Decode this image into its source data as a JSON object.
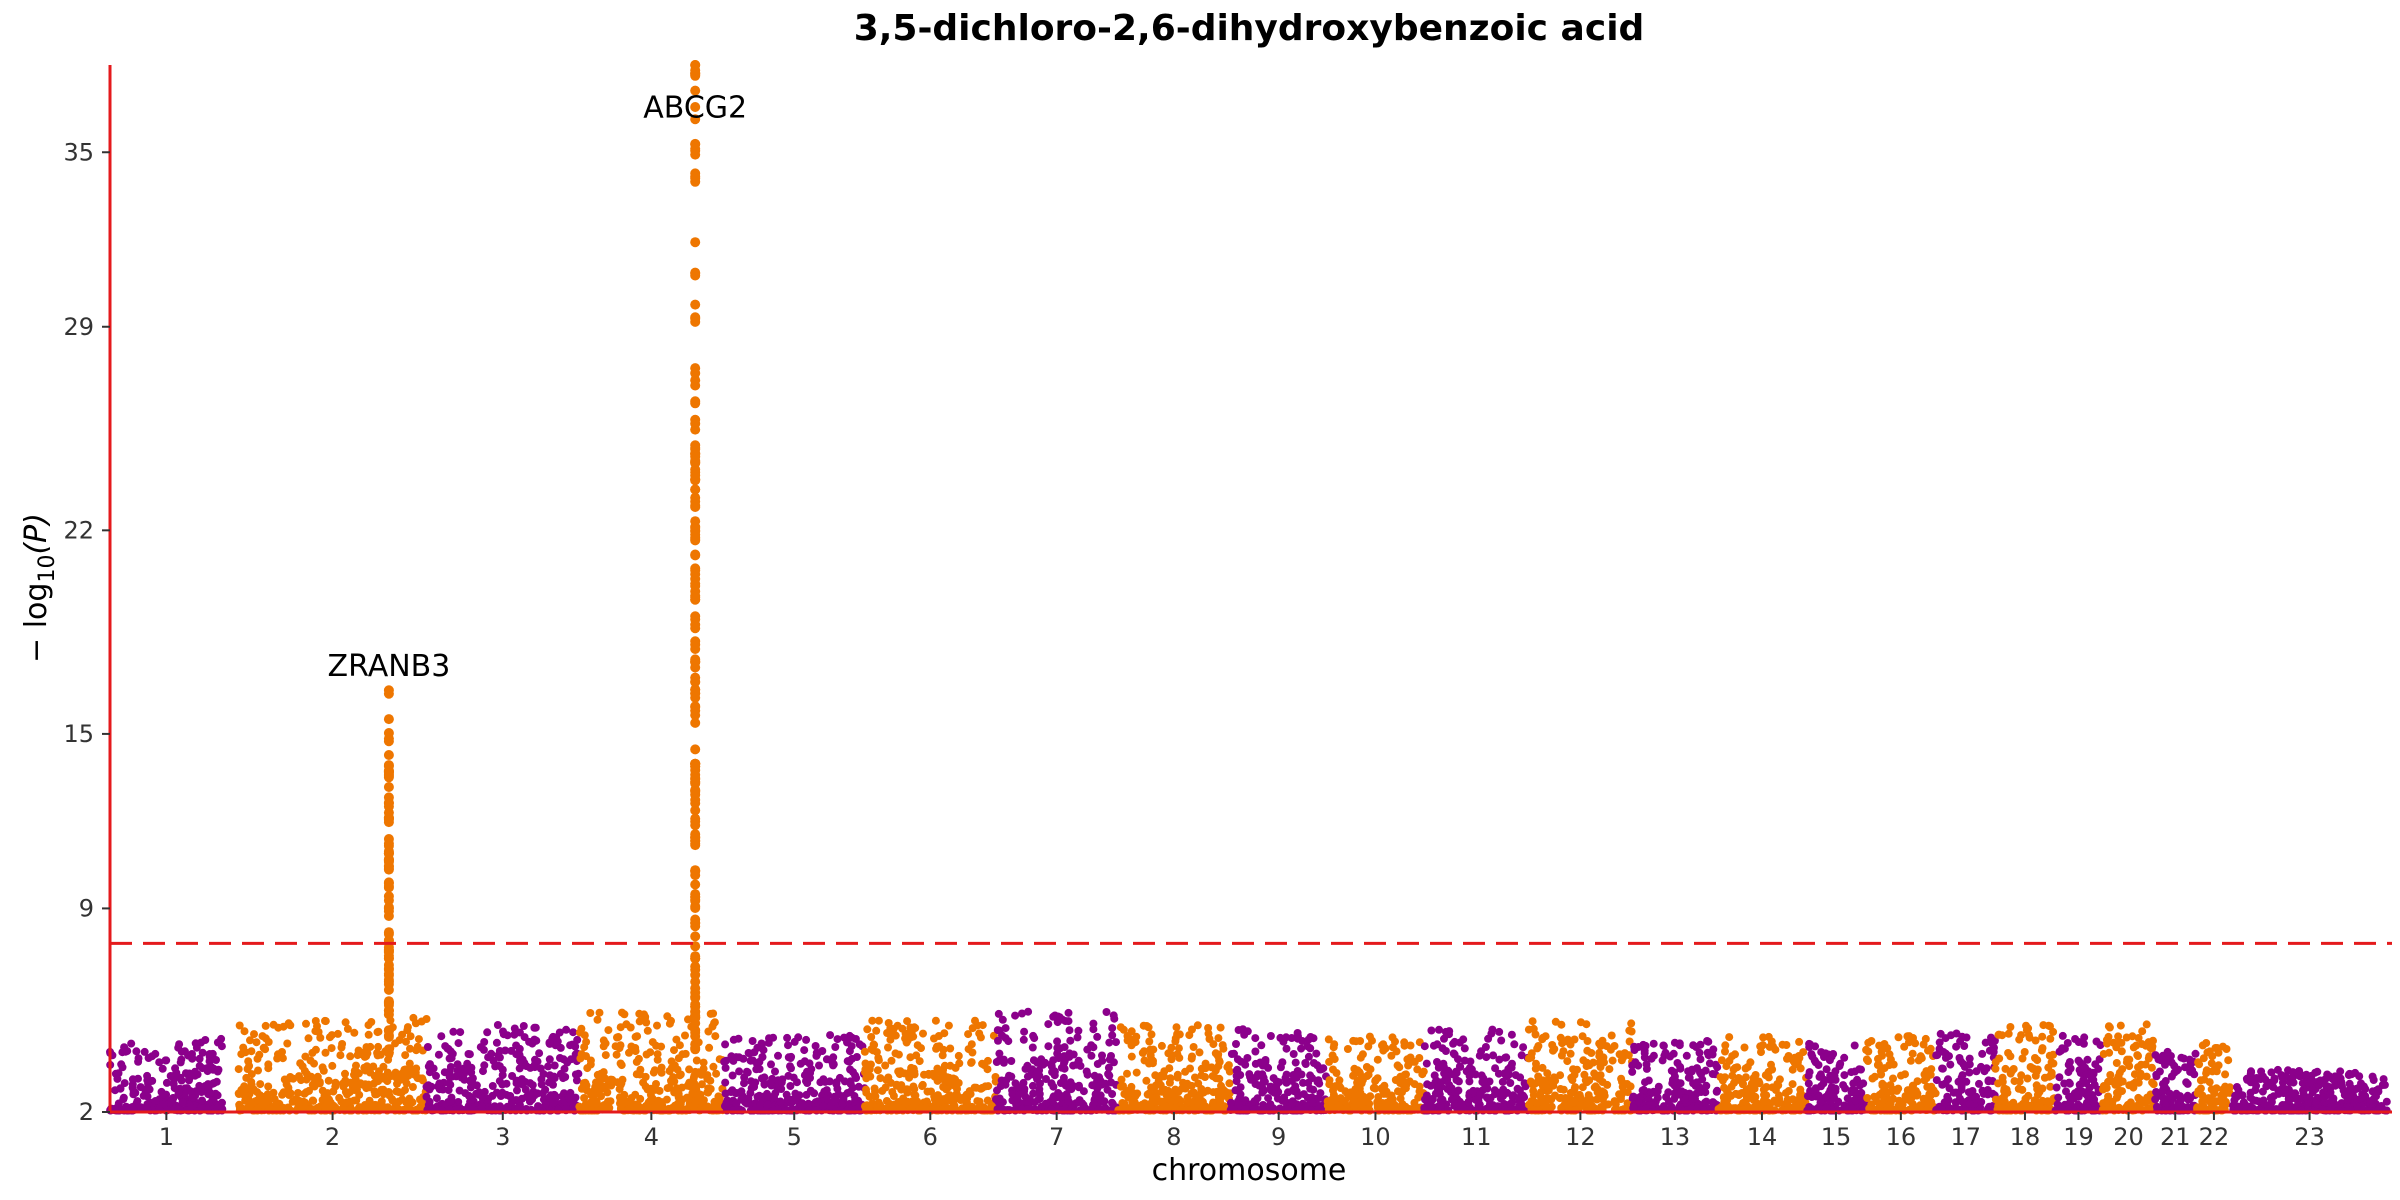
{
  "chart_data": {
    "type": "scatter",
    "title": "3,5-dichloro-2,6-dihydroxybenzoic acid",
    "xlabel": "chromosome",
    "ylabel_prefix": "− log",
    "ylabel_sub": "10",
    "ylabel_suffix": "(P)",
    "ylim": [
      2,
      38
    ],
    "yticks": [
      2,
      9,
      15,
      22,
      29,
      35
    ],
    "significance_threshold": 7.8,
    "colors": {
      "odd": "#8B008B",
      "even": "#EE7600",
      "axis": "#E41A1C",
      "threshold": "#E41A1C"
    },
    "chromosomes": [
      {
        "label": "1",
        "start": 0.0,
        "end": 4.95,
        "base_peak": 4.5
      },
      {
        "label": "2",
        "start": 5.65,
        "end": 13.9,
        "base_peak": 5.2
      },
      {
        "label": "3",
        "start": 13.9,
        "end": 20.6,
        "base_peak": 5.0
      },
      {
        "label": "4",
        "start": 20.6,
        "end": 26.95,
        "base_peak": 5.4
      },
      {
        "label": "5",
        "start": 26.95,
        "end": 33.15,
        "base_peak": 4.6
      },
      {
        "label": "6",
        "start": 33.15,
        "end": 38.9,
        "base_peak": 5.1
      },
      {
        "label": "7",
        "start": 38.9,
        "end": 44.25,
        "base_peak": 5.4
      },
      {
        "label": "8",
        "start": 44.25,
        "end": 49.2,
        "base_peak": 5.0
      },
      {
        "label": "9",
        "start": 49.2,
        "end": 53.45,
        "base_peak": 4.8
      },
      {
        "label": "10",
        "start": 53.45,
        "end": 57.7,
        "base_peak": 4.6
      },
      {
        "label": "11",
        "start": 57.7,
        "end": 62.3,
        "base_peak": 4.8
      },
      {
        "label": "12",
        "start": 62.3,
        "end": 66.85,
        "base_peak": 5.1
      },
      {
        "label": "13",
        "start": 66.85,
        "end": 70.6,
        "base_peak": 4.4
      },
      {
        "label": "14",
        "start": 70.6,
        "end": 74.5,
        "base_peak": 4.6
      },
      {
        "label": "15",
        "start": 74.5,
        "end": 77.1,
        "base_peak": 4.5
      },
      {
        "label": "16",
        "start": 77.1,
        "end": 80.2,
        "base_peak": 4.6
      },
      {
        "label": "17",
        "start": 80.2,
        "end": 82.8,
        "base_peak": 4.7
      },
      {
        "label": "18",
        "start": 82.8,
        "end": 85.4,
        "base_peak": 5.0
      },
      {
        "label": "19",
        "start": 85.4,
        "end": 87.5,
        "base_peak": 4.6
      },
      {
        "label": "20",
        "start": 87.5,
        "end": 89.8,
        "base_peak": 5.0
      },
      {
        "label": "21",
        "start": 89.8,
        "end": 91.6,
        "base_peak": 4.2
      },
      {
        "label": "22",
        "start": 91.6,
        "end": 93.2,
        "base_peak": 4.4
      },
      {
        "label": "23",
        "start": 93.2,
        "end": 100.0,
        "base_peak": 3.4
      }
    ],
    "peaks": [
      {
        "chrom": "2",
        "pos": 12.25,
        "max": 16.5
      },
      {
        "chrom": "4",
        "pos": 25.7,
        "max": 25.8
      },
      {
        "chrom": "4",
        "pos": 25.7,
        "max": 38.0
      }
    ],
    "annotations": [
      {
        "label": "ZRANB3",
        "pos": 12.25,
        "y": 17.0
      },
      {
        "label": "ABCG2",
        "pos": 25.7,
        "y": 36.2
      }
    ]
  }
}
